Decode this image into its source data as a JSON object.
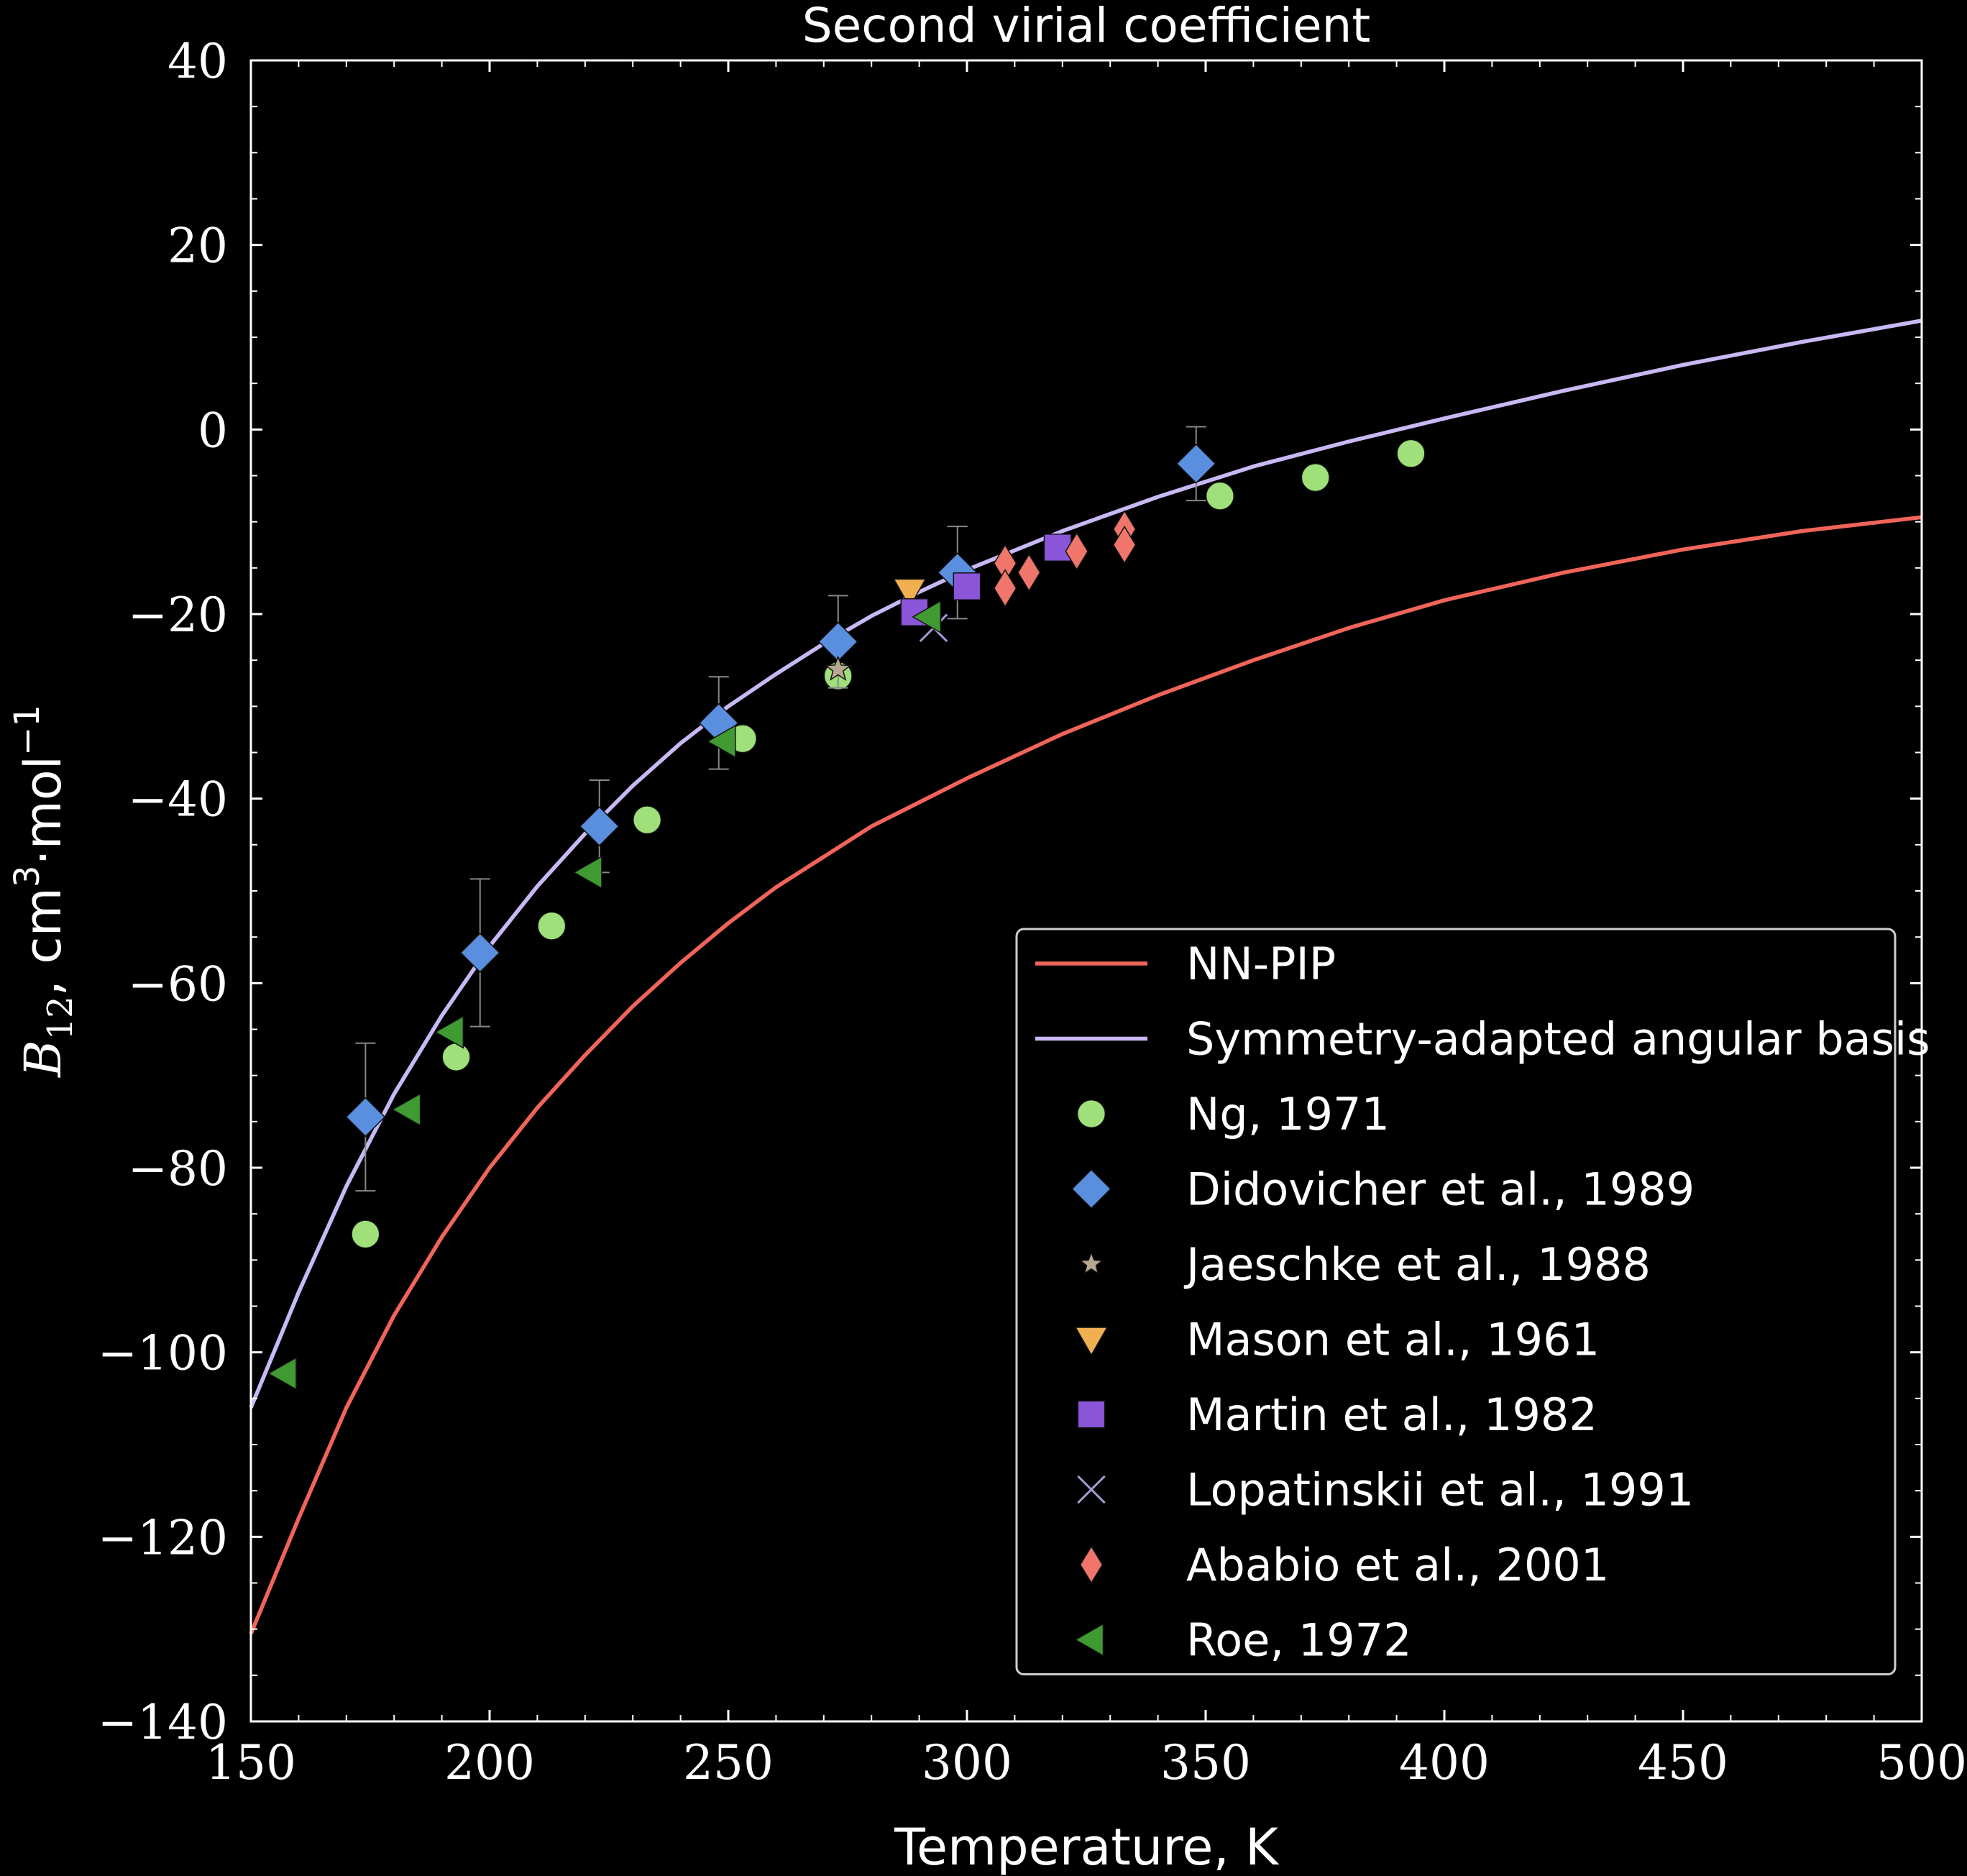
{
  "chart_data": {
    "type": "scatter",
    "title": "Second virial coefficient",
    "xlabel": "Temperature, K",
    "ylabel": {
      "symbol": "B",
      "subscript": "12",
      "unit_pre": ", cm",
      "unit_sup1": "3",
      "unit_mid": "·mol",
      "unit_sup2": "−1"
    },
    "xlim": [
      150,
      500
    ],
    "ylim": [
      -140,
      40
    ],
    "xticks": [
      150,
      200,
      250,
      300,
      350,
      400,
      450,
      500
    ],
    "yticks": [
      -140,
      -120,
      -100,
      -80,
      -60,
      -40,
      -20,
      0,
      20,
      40
    ],
    "ytick_labels": [
      "−140",
      "−120",
      "−100",
      "−80",
      "−60",
      "−40",
      "−20",
      "0",
      "20",
      "40"
    ],
    "grid": false,
    "legend_position": "lower-right",
    "curves": [
      {
        "name": "NN-PIP",
        "color": "#f0645a",
        "x": [
          150,
          160,
          170,
          180,
          190,
          200,
          210,
          220,
          230,
          240,
          250,
          260,
          280,
          300,
          320,
          340,
          360,
          380,
          400,
          425,
          450,
          475,
          500
        ],
        "y": [
          -130.5,
          -118.0,
          -106.0,
          -96.0,
          -87.5,
          -80.0,
          -73.5,
          -67.8,
          -62.5,
          -57.8,
          -53.5,
          -49.6,
          -43.0,
          -37.8,
          -33.0,
          -28.8,
          -25.0,
          -21.5,
          -18.5,
          -15.5,
          -13.0,
          -11.0,
          -9.5
        ]
      },
      {
        "name": "Symmetry-adapted angular basis",
        "color": "#c8b8f4",
        "x": [
          150,
          160,
          170,
          175,
          180,
          190,
          200,
          210,
          220,
          230,
          240,
          250,
          260,
          270,
          280,
          290,
          300,
          320,
          340,
          360,
          380,
          400,
          425,
          450,
          475,
          500
        ],
        "y": [
          -106.0,
          -93.5,
          -82.0,
          -77.0,
          -72.0,
          -63.5,
          -56.0,
          -49.5,
          -43.8,
          -38.6,
          -34.0,
          -30.0,
          -26.5,
          -23.2,
          -20.2,
          -17.6,
          -15.2,
          -11.0,
          -7.3,
          -4.0,
          -1.3,
          1.2,
          4.2,
          7.0,
          9.5,
          11.8
        ]
      }
    ],
    "series": [
      {
        "name": "Ng, 1971",
        "marker": "circle",
        "color": "#9fe07a",
        "points": [
          [
            174,
            -87.2
          ],
          [
            193,
            -68.0
          ],
          [
            213,
            -53.8
          ],
          [
            233,
            -42.3
          ],
          [
            253,
            -33.5
          ],
          [
            273,
            -26.7
          ],
          [
            353,
            -7.2
          ],
          [
            373,
            -5.2
          ],
          [
            393,
            -2.6
          ]
        ]
      },
      {
        "name": "Didovicher et al., 1989",
        "marker": "diamond",
        "color": "#5a8fe0",
        "points": [
          [
            174,
            -74.5,
            8.0
          ],
          [
            198,
            -56.7,
            8.0
          ],
          [
            223,
            -43.0,
            5.0
          ],
          [
            248,
            -31.8,
            5.0
          ],
          [
            273,
            -23.0,
            5.0
          ],
          [
            298,
            -15.5,
            5.0
          ],
          [
            348,
            -3.7,
            4.0
          ]
        ]
      },
      {
        "name": "Jaeschke et al., 1988",
        "marker": "star",
        "color": "#b8a892",
        "points": [
          [
            273,
            -26.0
          ]
        ]
      },
      {
        "name": "Mason et al., 1961",
        "marker": "triangle-down",
        "color": "#f0b050",
        "points": [
          [
            288,
            -17.5
          ]
        ]
      },
      {
        "name": "Martin et al., 1982",
        "marker": "square",
        "color": "#8a55d8",
        "points": [
          [
            289,
            -19.8
          ],
          [
            300,
            -17.0
          ],
          [
            319,
            -12.8
          ]
        ]
      },
      {
        "name": "Lopatinskii et al., 1991",
        "marker": "x",
        "color": "#a49ad4",
        "points": [
          [
            293,
            -21.5
          ]
        ]
      },
      {
        "name": "Ababio et al., 2001",
        "marker": "thin-diamond",
        "color": "#f0766c",
        "points": [
          [
            308,
            -14.5
          ],
          [
            308,
            -17.2
          ],
          [
            313,
            -15.5
          ],
          [
            323,
            -13.2
          ],
          [
            333,
            -10.8
          ],
          [
            333,
            -12.5
          ]
        ]
      },
      {
        "name": "Roe, 1972",
        "marker": "triangle-left",
        "color": "#3f9a32",
        "points": [
          [
            157,
            -102.3
          ],
          [
            183,
            -73.7
          ],
          [
            192,
            -65.3
          ],
          [
            221,
            -48.0
          ],
          [
            249,
            -33.8
          ],
          [
            292,
            -20.3
          ]
        ]
      }
    ]
  }
}
